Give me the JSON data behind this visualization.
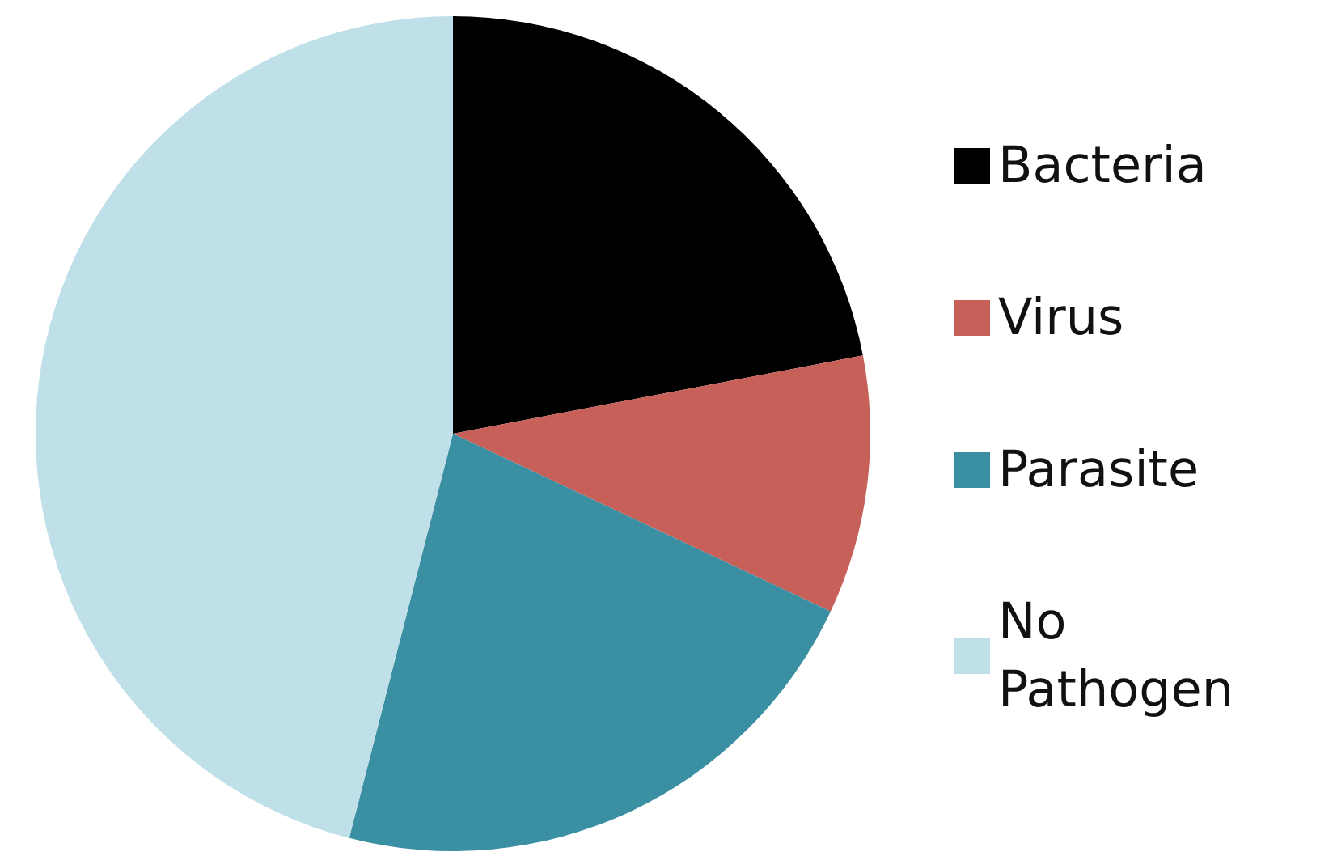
{
  "chart_data": {
    "type": "pie",
    "categories": [
      "Bacteria",
      "Virus",
      "Parasite",
      "No Pathogen"
    ],
    "values": [
      22,
      10,
      22,
      46
    ],
    "colors": [
      "#000000",
      "#c8605a",
      "#3a8fa3",
      "#bfe0e8"
    ],
    "legend": "right"
  }
}
